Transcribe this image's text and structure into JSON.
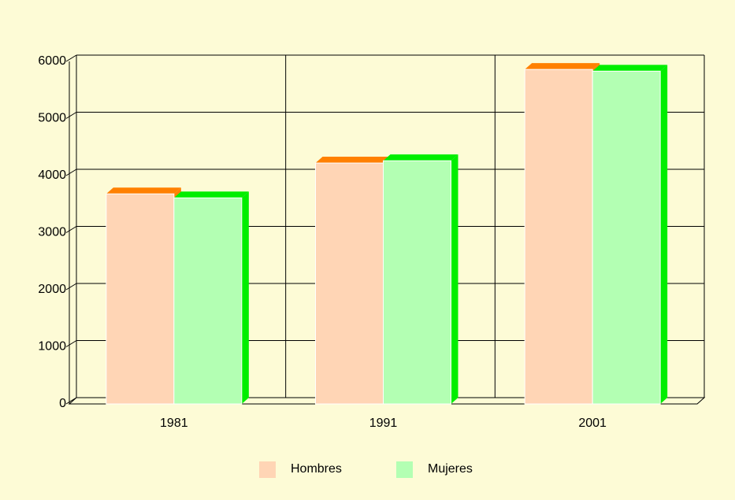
{
  "chart_data": {
    "type": "bar3d",
    "categories": [
      "1981",
      "1991",
      "2001"
    ],
    "series": [
      {
        "name": "Hombres",
        "color": "#ffd5b5",
        "top_color": "#ff8000",
        "values": [
          3680,
          4220,
          5860
        ]
      },
      {
        "name": "Mujeres",
        "color": "#b3ffb3",
        "top_color": "#00ee00",
        "values": [
          3610,
          4260,
          5830
        ]
      }
    ],
    "ylim": [
      0,
      6000
    ],
    "yticks": [
      0,
      1000,
      2000,
      3000,
      4000,
      5000,
      6000
    ],
    "grid": true
  }
}
